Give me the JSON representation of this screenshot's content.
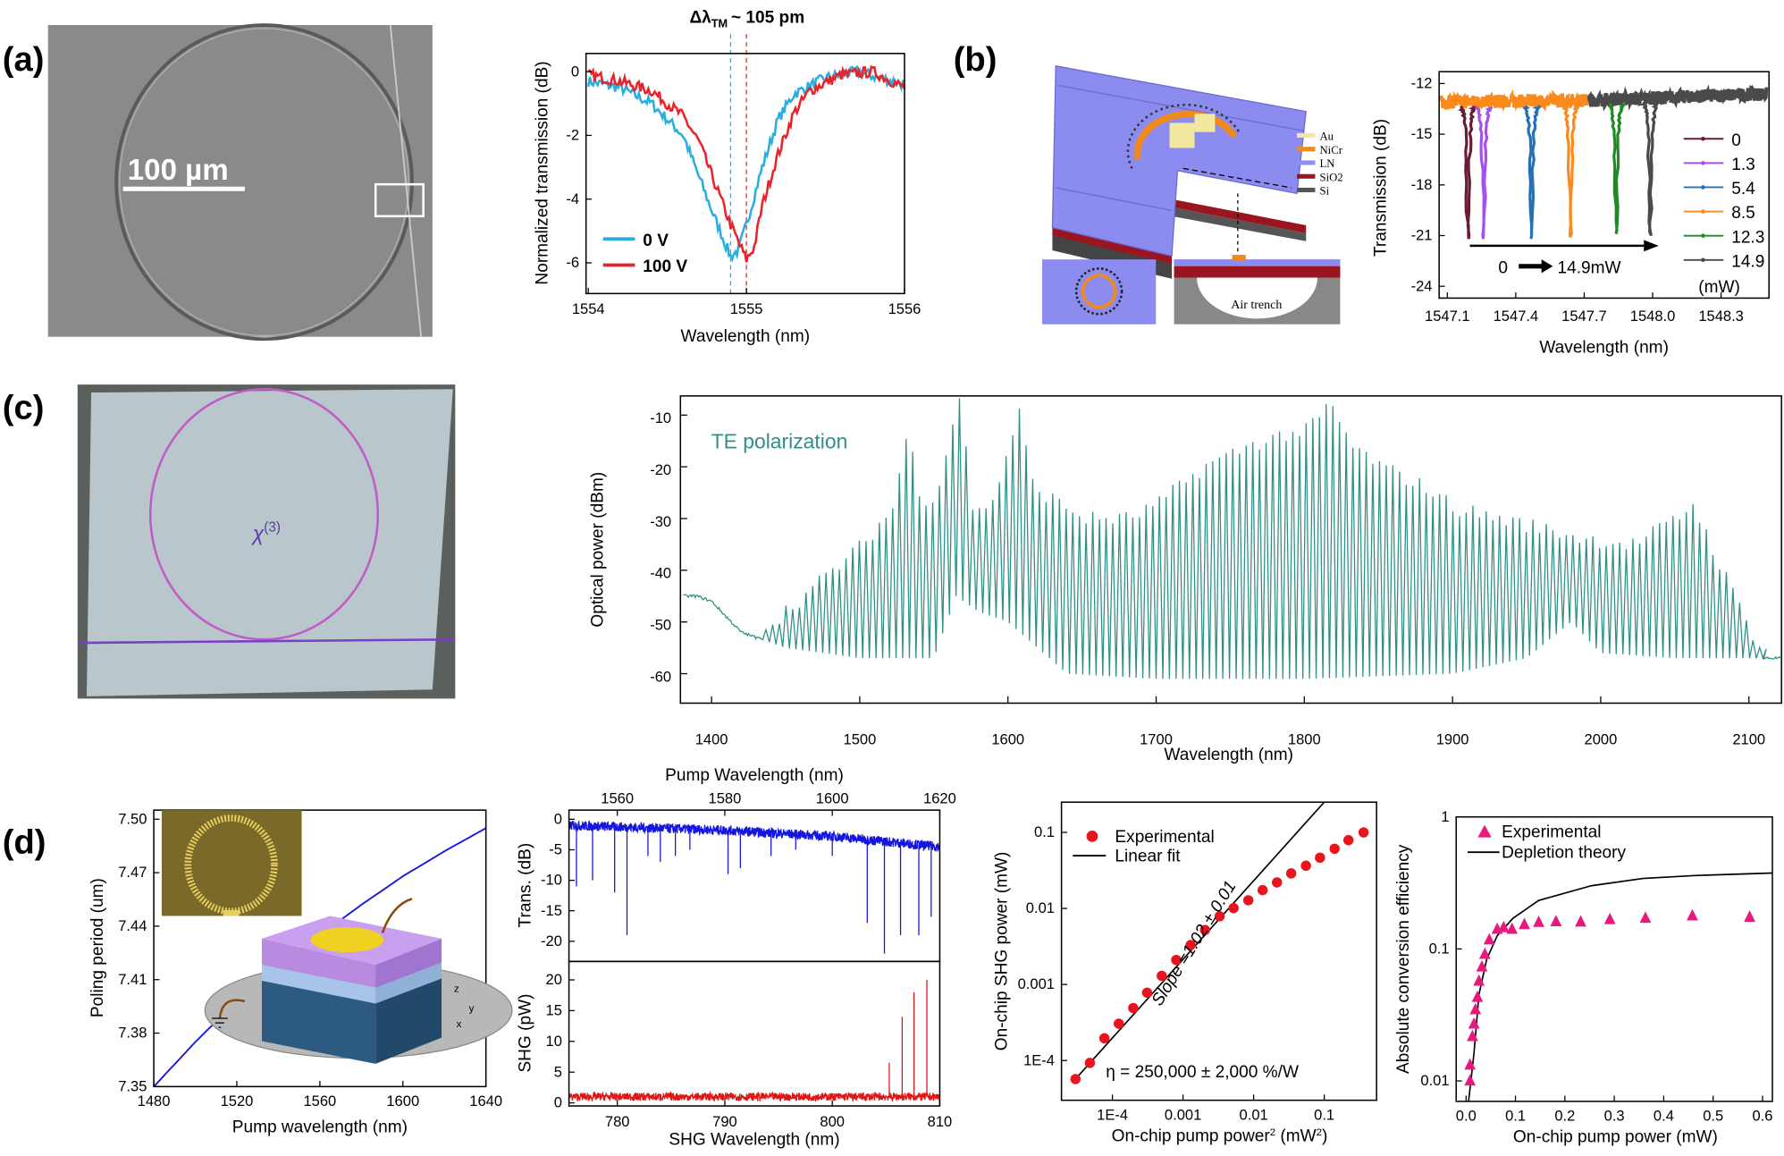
{
  "panel_labels": {
    "a": "(a)",
    "b": "(b)",
    "c": "(c)",
    "d": "(d)"
  },
  "images": {
    "a_scale_bar": "100 µm",
    "b_materials": [
      {
        "name": "Au",
        "color": "#f3e7a0"
      },
      {
        "name": "NiCr",
        "color": "#f08a1c"
      },
      {
        "name": "LN",
        "color": "#8f8ff0"
      },
      {
        "name": "SiO2",
        "color": "#9b1520"
      },
      {
        "name": "Si",
        "color": "#555555"
      }
    ],
    "b_air_trench": "Air trench",
    "c_chi_label": "χ",
    "c_chi_sup": "(3)",
    "d_axes": {
      "z": "z",
      "y": "y",
      "x": "x"
    }
  },
  "chart_data": [
    {
      "id": "a",
      "type": "line",
      "title": {
        "main": "Δλ",
        "sub": "TM",
        "rest": "~ 105 pm"
      },
      "xlabel": "Wavelength (nm)",
      "ylabel": "Normalized transmission (dB)",
      "xlim": [
        1554,
        1556
      ],
      "ylim": [
        -7,
        0.6
      ],
      "xticks": [
        "1554",
        "1555",
        "1556"
      ],
      "yticks": [
        "0",
        "-2",
        "-4",
        "-6"
      ],
      "markers": [
        {
          "x": 1554.9,
          "color": "#29aee0"
        },
        {
          "x": 1555.0,
          "color": "#e8242a"
        }
      ],
      "legend": "bottom-left",
      "series": [
        {
          "name": "0 V",
          "color": "#29aee0",
          "x": [
            1554,
            1554.2,
            1554.4,
            1554.6,
            1554.7,
            1554.8,
            1554.9,
            1554.95,
            1555.0,
            1555.1,
            1555.2,
            1555.3,
            1555.5,
            1555.7,
            1556
          ],
          "y": [
            -0.3,
            -0.5,
            -1.0,
            -2.0,
            -3.3,
            -4.6,
            -5.8,
            -5.6,
            -4.8,
            -3.0,
            -1.5,
            -0.7,
            -0.2,
            0.0,
            -0.4
          ]
        },
        {
          "name": "100 V",
          "color": "#e8242a",
          "x": [
            1554,
            1554.2,
            1554.4,
            1554.6,
            1554.7,
            1554.8,
            1554.9,
            1555.0,
            1555.05,
            1555.1,
            1555.2,
            1555.3,
            1555.4,
            1555.6,
            1555.8,
            1556
          ],
          "y": [
            -0.1,
            -0.3,
            -0.6,
            -1.4,
            -2.2,
            -3.5,
            -4.8,
            -5.9,
            -5.5,
            -4.2,
            -2.6,
            -1.3,
            -0.6,
            -0.1,
            0.0,
            -0.5
          ]
        }
      ]
    },
    {
      "id": "b",
      "type": "line",
      "xlabel": "Wavelength (nm)",
      "ylabel": "Transmission (dB)",
      "xlim": [
        1547.064,
        1548.51
      ],
      "ylim": [
        -24.7,
        -11.3
      ],
      "xticks": [
        "1547.1",
        "1547.4",
        "1547.7",
        "1548.0",
        "1548.3"
      ],
      "yticks": [
        "-12",
        "-15",
        "-18",
        "-21",
        "-24"
      ],
      "baseline": {
        "x": [
          1547.064,
          1547.7,
          1548.51
        ],
        "y": [
          -13.1,
          -13.0,
          -12.6
        ]
      },
      "legend_unit": "(mW)",
      "legend": "right",
      "arrow_label": {
        "start": "0",
        "end": "14.9mW"
      },
      "series": [
        {
          "name": "0",
          "color": "#6b1a35",
          "dip_x": 1547.19,
          "dip_y": -21.2
        },
        {
          "name": "1.3",
          "color": "#a64ff0",
          "dip_x": 1547.26,
          "dip_y": -21.2
        },
        {
          "name": "5.4",
          "color": "#2471b5",
          "dip_x": 1547.47,
          "dip_y": -21.2
        },
        {
          "name": "8.5",
          "color": "#fb8a1d",
          "dip_x": 1547.64,
          "dip_y": -21.1
        },
        {
          "name": "12.3",
          "color": "#1f8a24",
          "dip_x": 1547.84,
          "dip_y": -20.9
        },
        {
          "name": "14.9",
          "color": "#4a4a4a",
          "dip_x": 1547.99,
          "dip_y": -21.0
        }
      ]
    },
    {
      "id": "c",
      "type": "line",
      "xlabel": "Wavelength (nm)",
      "ylabel": "Optical power (dBm)",
      "annotation": "TE polarization",
      "color": "#2f8f86",
      "xlim": [
        1379,
        2122
      ],
      "ylim": [
        -65.7,
        -6.3
      ],
      "xticks": [
        "1400",
        "1500",
        "1600",
        "1700",
        "1800",
        "1900",
        "2000",
        "2100"
      ],
      "yticks": [
        "-10",
        "-20",
        "-30",
        "-40",
        "-50",
        "-60"
      ],
      "comb_range": [
        1430,
        2110
      ],
      "peak_envelope": {
        "x": [
          1430,
          1460,
          1480,
          1500,
          1520,
          1530,
          1540,
          1550,
          1565,
          1575,
          1590,
          1605,
          1615,
          1650,
          1680,
          1700,
          1730,
          1760,
          1780,
          1800,
          1815,
          1830,
          1850,
          1880,
          1900,
          1930,
          1960,
          1990,
          2020,
          2050,
          2060,
          2080,
          2100,
          2110
        ],
        "y": [
          -52,
          -45,
          -40,
          -35,
          -28,
          -13,
          -27,
          -25,
          -6,
          -30,
          -25,
          -9,
          -24,
          -30,
          -30,
          -27,
          -20,
          -16,
          -14,
          -13,
          -8,
          -16,
          -20,
          -24,
          -28,
          -30,
          -32,
          -34,
          -35,
          -30,
          -27,
          -40,
          -52,
          -56
        ]
      },
      "floor": {
        "x": [
          1390,
          1400,
          1420,
          1450,
          1500,
          1550,
          1565,
          1580,
          1600,
          1640,
          1700,
          1800,
          1900,
          1950,
          1980,
          2000,
          2050,
          2100,
          2122
        ],
        "y": [
          -45,
          -46,
          -52,
          -55,
          -57,
          -57,
          -45,
          -48,
          -50,
          -60,
          -61,
          -61,
          -60,
          -57,
          -50,
          -56,
          -57,
          -57,
          -57
        ]
      }
    },
    {
      "id": "d1",
      "type": "line",
      "xlabel": "Pump wavelength (nm)",
      "ylabel": "Poling period (um)",
      "xlim": [
        1480,
        1640
      ],
      "ylim": [
        7.35,
        7.505
      ],
      "xticks": [
        "1480",
        "1520",
        "1560",
        "1600",
        "1640"
      ],
      "yticks": [
        "7.35",
        "7.38",
        "7.41",
        "7.44",
        "7.47",
        "7.50"
      ],
      "series": [
        {
          "color": "#1a1adf",
          "x": [
            1480,
            1500,
            1520,
            1540,
            1560,
            1580,
            1600,
            1620,
            1640
          ],
          "y": [
            7.35,
            7.375,
            7.398,
            7.418,
            7.435,
            7.452,
            7.468,
            7.482,
            7.495
          ]
        }
      ]
    },
    {
      "id": "d2",
      "type": "line",
      "top_xlabel": "Pump Wavelength (nm)",
      "xlabel": "SHG Wavelength (nm)",
      "top_xticks": [
        "1560",
        "1580",
        "1600",
        "1620"
      ],
      "xticks": [
        "780",
        "790",
        "800",
        "810"
      ],
      "xlim": [
        775.5,
        810
      ],
      "trans": {
        "ylabel": "Trans. (dB)",
        "ylim": [
          -23.3,
          1.5
        ],
        "yticks": [
          "0",
          "-5",
          "-10",
          "-15",
          "-20"
        ],
        "color": "#1515e0",
        "baseline": {
          "x": [
            1551,
            1580,
            1600,
            1620
          ],
          "y": [
            -1.0,
            -1.8,
            -2.8,
            -4.5
          ]
        },
        "dips_x": [
          1552.4,
          1555.4,
          1559.5,
          1561.8,
          1565.7,
          1568,
          1570.8,
          1573.5,
          1580.6,
          1582.9,
          1588.6,
          1593.2,
          1600,
          1606.5,
          1609.7,
          1612.7,
          1616.1,
          1618.4
        ],
        "dips_y": [
          -11,
          -10,
          -12,
          -19,
          -6,
          -7,
          -6,
          -5,
          -9,
          -8,
          -6,
          -5,
          -6,
          -17,
          -22,
          -19,
          -19,
          -16
        ]
      },
      "shg": {
        "ylabel": "SHG (pW)",
        "ylim": [
          -0.5,
          23
        ],
        "yticks": [
          "0",
          "5",
          "10",
          "15",
          "20"
        ],
        "color": "#e01515",
        "baseline": 1.0,
        "peaks_x": [
          805.3,
          806.5,
          807.6,
          808.8
        ],
        "peaks_y": [
          6.5,
          14,
          18,
          20
        ]
      }
    },
    {
      "id": "d3",
      "type": "scatter",
      "xscale": "log",
      "yscale": "log",
      "xlabel": "On-chip pump power",
      "xlabel_sup": "2",
      "xlabel_unit": " (mW",
      "xlabel_unit_sup": "2",
      "xlabel_end": ")",
      "ylabel": "On-chip SHG power (mW)",
      "xlim": [
        1.9e-05,
        0.55
      ],
      "ylim": [
        3e-05,
        0.25
      ],
      "xticks": [
        "1E-4",
        "0.001",
        "0.01",
        "0.1"
      ],
      "yticks": [
        "1E-4",
        "0.001",
        "0.01",
        "0.1"
      ],
      "slope_label": "Slope =1.02 ± 0.01",
      "efficiency_label": "η = 250,000 ± 2,000 %/W",
      "legend": "top-left",
      "series": [
        {
          "name": "Experimental",
          "color": "#e8141e",
          "x": [
            3e-05,
            4.8e-05,
            7.7e-05,
            0.000123,
            0.000197,
            0.00031,
            0.0005,
            0.0008,
            0.00128,
            0.00205,
            0.0033,
            0.0052,
            0.0084,
            0.0134,
            0.0214,
            0.034,
            0.055,
            0.087,
            0.14,
            0.22,
            0.36
          ],
          "y": [
            5.7e-05,
            9.3e-05,
            0.000196,
            0.000305,
            0.00049,
            0.00078,
            0.0013,
            0.0021,
            0.0033,
            0.0052,
            0.0079,
            0.0101,
            0.0128,
            0.0174,
            0.022,
            0.0289,
            0.0365,
            0.0465,
            0.061,
            0.079,
            0.1
          ]
        },
        {
          "name": "Linear fit",
          "color": "#000000",
          "x": [
            3e-05,
            0.1
          ],
          "y": [
            5.7e-05,
            0.25
          ]
        }
      ]
    },
    {
      "id": "d4",
      "type": "scatter",
      "yscale": "log",
      "xlabel": "On-chip pump power (mW)",
      "ylabel": "Absolute conversion efficiency",
      "xlim": [
        -0.02,
        0.62
      ],
      "ylim": [
        0.007,
        1
      ],
      "xticks": [
        "0.0",
        "0.1",
        "0.2",
        "0.3",
        "0.4",
        "0.5",
        "0.6"
      ],
      "yticks": [
        "0.01",
        "0.1",
        "1"
      ],
      "legend": "top-left",
      "series": [
        {
          "name": "Experimental",
          "color": "#e8187c",
          "x": [
            0.008,
            0.008,
            0.013,
            0.016,
            0.019,
            0.023,
            0.026,
            0.032,
            0.038,
            0.047,
            0.063,
            0.076,
            0.093,
            0.118,
            0.147,
            0.182,
            0.232,
            0.291,
            0.363,
            0.458,
            0.574
          ],
          "y": [
            0.01,
            0.0132,
            0.0217,
            0.027,
            0.0346,
            0.043,
            0.057,
            0.073,
            0.091,
            0.117,
            0.141,
            0.145,
            0.141,
            0.153,
            0.159,
            0.161,
            0.16,
            0.167,
            0.171,
            0.178,
            0.174
          ]
        },
        {
          "name": "Depletion theory",
          "color": "#000000",
          "x": [
            0.005,
            0.016,
            0.026,
            0.042,
            0.063,
            0.095,
            0.147,
            0.253,
            0.358,
            0.463,
            0.619
          ],
          "y": [
            0.007,
            0.016,
            0.045,
            0.084,
            0.126,
            0.171,
            0.233,
            0.301,
            0.342,
            0.36,
            0.376
          ]
        }
      ]
    }
  ]
}
